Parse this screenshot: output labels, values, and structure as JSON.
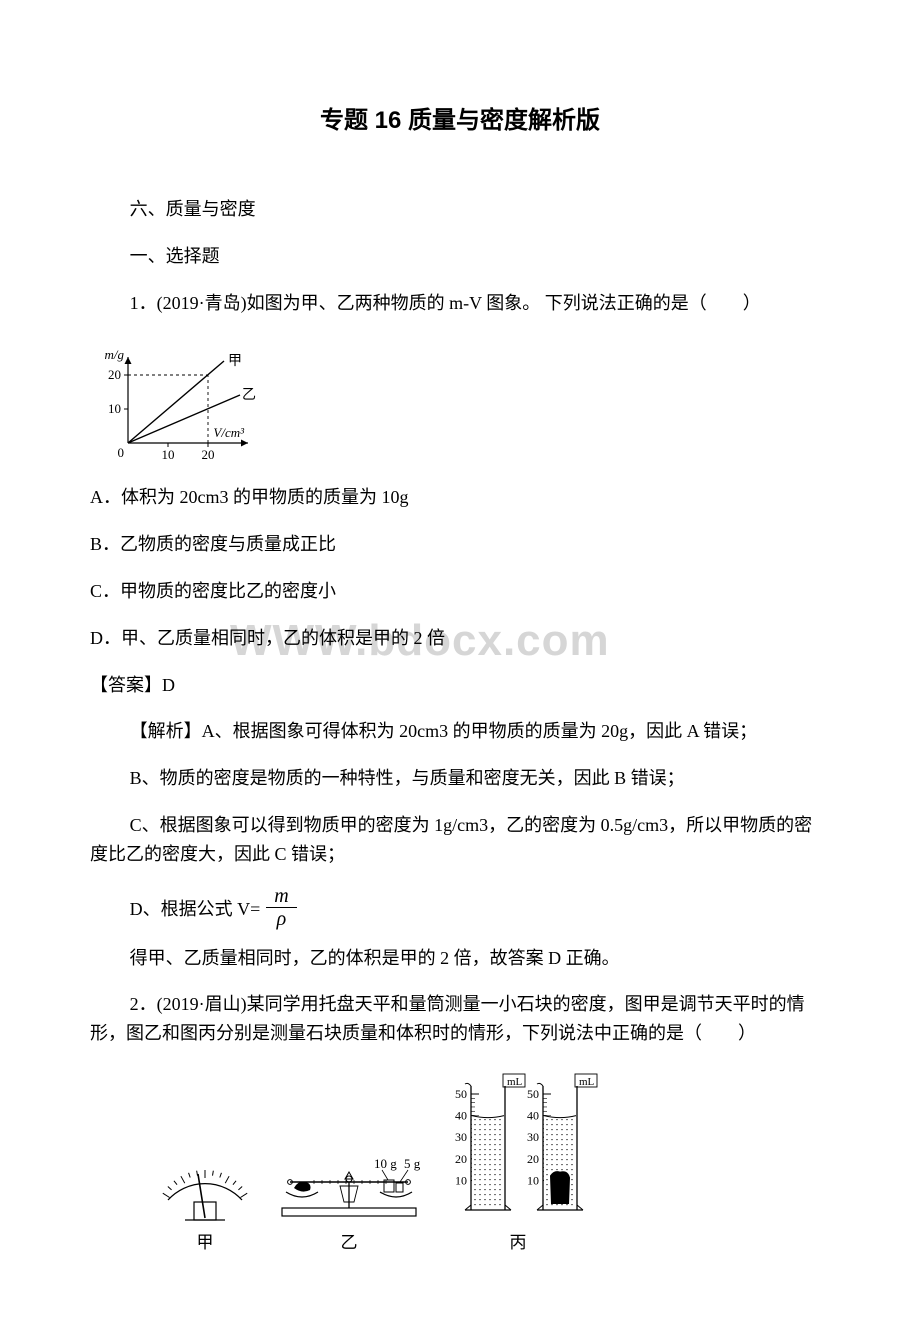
{
  "title": "专题 16 质量与密度解析版",
  "section_heading": "六、质量与密度",
  "part1_heading": "一、选择题",
  "q1": {
    "stem": "1．(2019·青岛)如图为甲、乙两种物质的 m-V 图象。 下列说法正确的是（　　）",
    "optA": "A．体积为 20cm3 的甲物质的质量为 10g",
    "optB": "B．乙物质的密度与质量成正比",
    "optC": "C．甲物质的密度比乙的密度小",
    "optD": "D．甲、乙质量相同时，乙的体积是甲的 2 倍",
    "answer": "【答案】D",
    "explA": "【解析】A、根据图象可得体积为 20cm3 的甲物质的质量为 20g，因此 A 错误；",
    "explB": "B、物质的密度是物质的一种特性，与质量和密度无关，因此 B 错误；",
    "explC": "C、根据图象可以得到物质甲的密度为 1g/cm3，乙的密度为 0.5g/cm3，所以甲物质的密度比乙的密度大，因此 C 错误；",
    "explD_prefix": "D、根据公式 V= ",
    "explD_tail": "得甲、乙质量相同时，乙的体积是甲的 2 倍，故答案 D 正确。",
    "fraction_num": "m",
    "fraction_den": "ρ",
    "chart": {
      "ylabel": "m/g",
      "xlabel": "V/cm³",
      "xticks": [
        "0",
        "10",
        "20"
      ],
      "yticks": [
        "10",
        "20"
      ],
      "line1_label": "甲",
      "line2_label": "乙",
      "axis_color": "#000000",
      "line_color": "#000000",
      "dash_color": "#000000",
      "fontsize": 13
    }
  },
  "watermark_text": "WWW.bdocx.com",
  "q2": {
    "stem": "2．(2019·眉山)某同学用托盘天平和量筒测量一小石块的密度，图甲是调节天平时的情形，图乙和图丙分别是测量石块质量和体积时的情形，下列说法中正确的是（　　）",
    "caption_a": "甲",
    "caption_b": "乙",
    "caption_c": "丙",
    "weights_10": "10 g",
    "weights_5": "5 g",
    "cyl_unit": "mL",
    "cyl_ticks": [
      "10",
      "20",
      "30",
      "40",
      "50"
    ],
    "cyl1_level": 40,
    "cyl2_level": 40,
    "cyl2_stone_top": 15,
    "axis_color": "#000000"
  }
}
